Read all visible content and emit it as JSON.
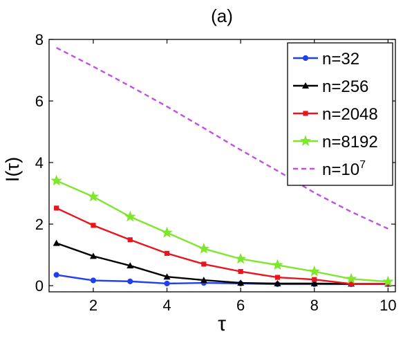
{
  "chart_data": {
    "type": "line",
    "title": "(a)",
    "xlabel": "τ",
    "ylabel": "I(τ)",
    "xlim": [
      0.8,
      10.2
    ],
    "ylim": [
      -0.2,
      8
    ],
    "xticks": [
      2,
      4,
      6,
      8,
      10
    ],
    "yticks": [
      0,
      2,
      4,
      6,
      8
    ],
    "grid": false,
    "legend_position": "top-right",
    "x": [
      1,
      2,
      3,
      4,
      5,
      6,
      7,
      8,
      9,
      10
    ],
    "series": [
      {
        "name": "n=32",
        "color": "#1f3ff0",
        "marker": "circle",
        "dashed": false,
        "values": [
          0.35,
          0.17,
          0.14,
          0.07,
          0.09,
          0.07,
          0.05,
          0.05,
          0.05,
          0.05
        ]
      },
      {
        "name": "n=256",
        "color": "#000000",
        "marker": "triangle",
        "dashed": false,
        "values": [
          1.38,
          0.96,
          0.65,
          0.29,
          0.18,
          0.09,
          0.07,
          0.07,
          0.06,
          0.06
        ]
      },
      {
        "name": "n=2048",
        "color": "#e8161b",
        "marker": "square",
        "dashed": false,
        "values": [
          2.52,
          1.96,
          1.49,
          1.05,
          0.7,
          0.46,
          0.27,
          0.2,
          0.06,
          0.06
        ]
      },
      {
        "name": "n=8192",
        "color": "#7ee62c",
        "marker": "star",
        "dashed": false,
        "values": [
          3.41,
          2.89,
          2.24,
          1.72,
          1.2,
          0.87,
          0.67,
          0.46,
          0.22,
          0.13
        ]
      },
      {
        "name": "n=10",
        "name_sup": "7",
        "color": "#bf4fe6",
        "marker": "none",
        "dashed": true,
        "values": [
          7.73,
          7.12,
          6.48,
          5.82,
          5.12,
          4.41,
          3.73,
          3.02,
          2.4,
          1.85
        ]
      }
    ]
  }
}
